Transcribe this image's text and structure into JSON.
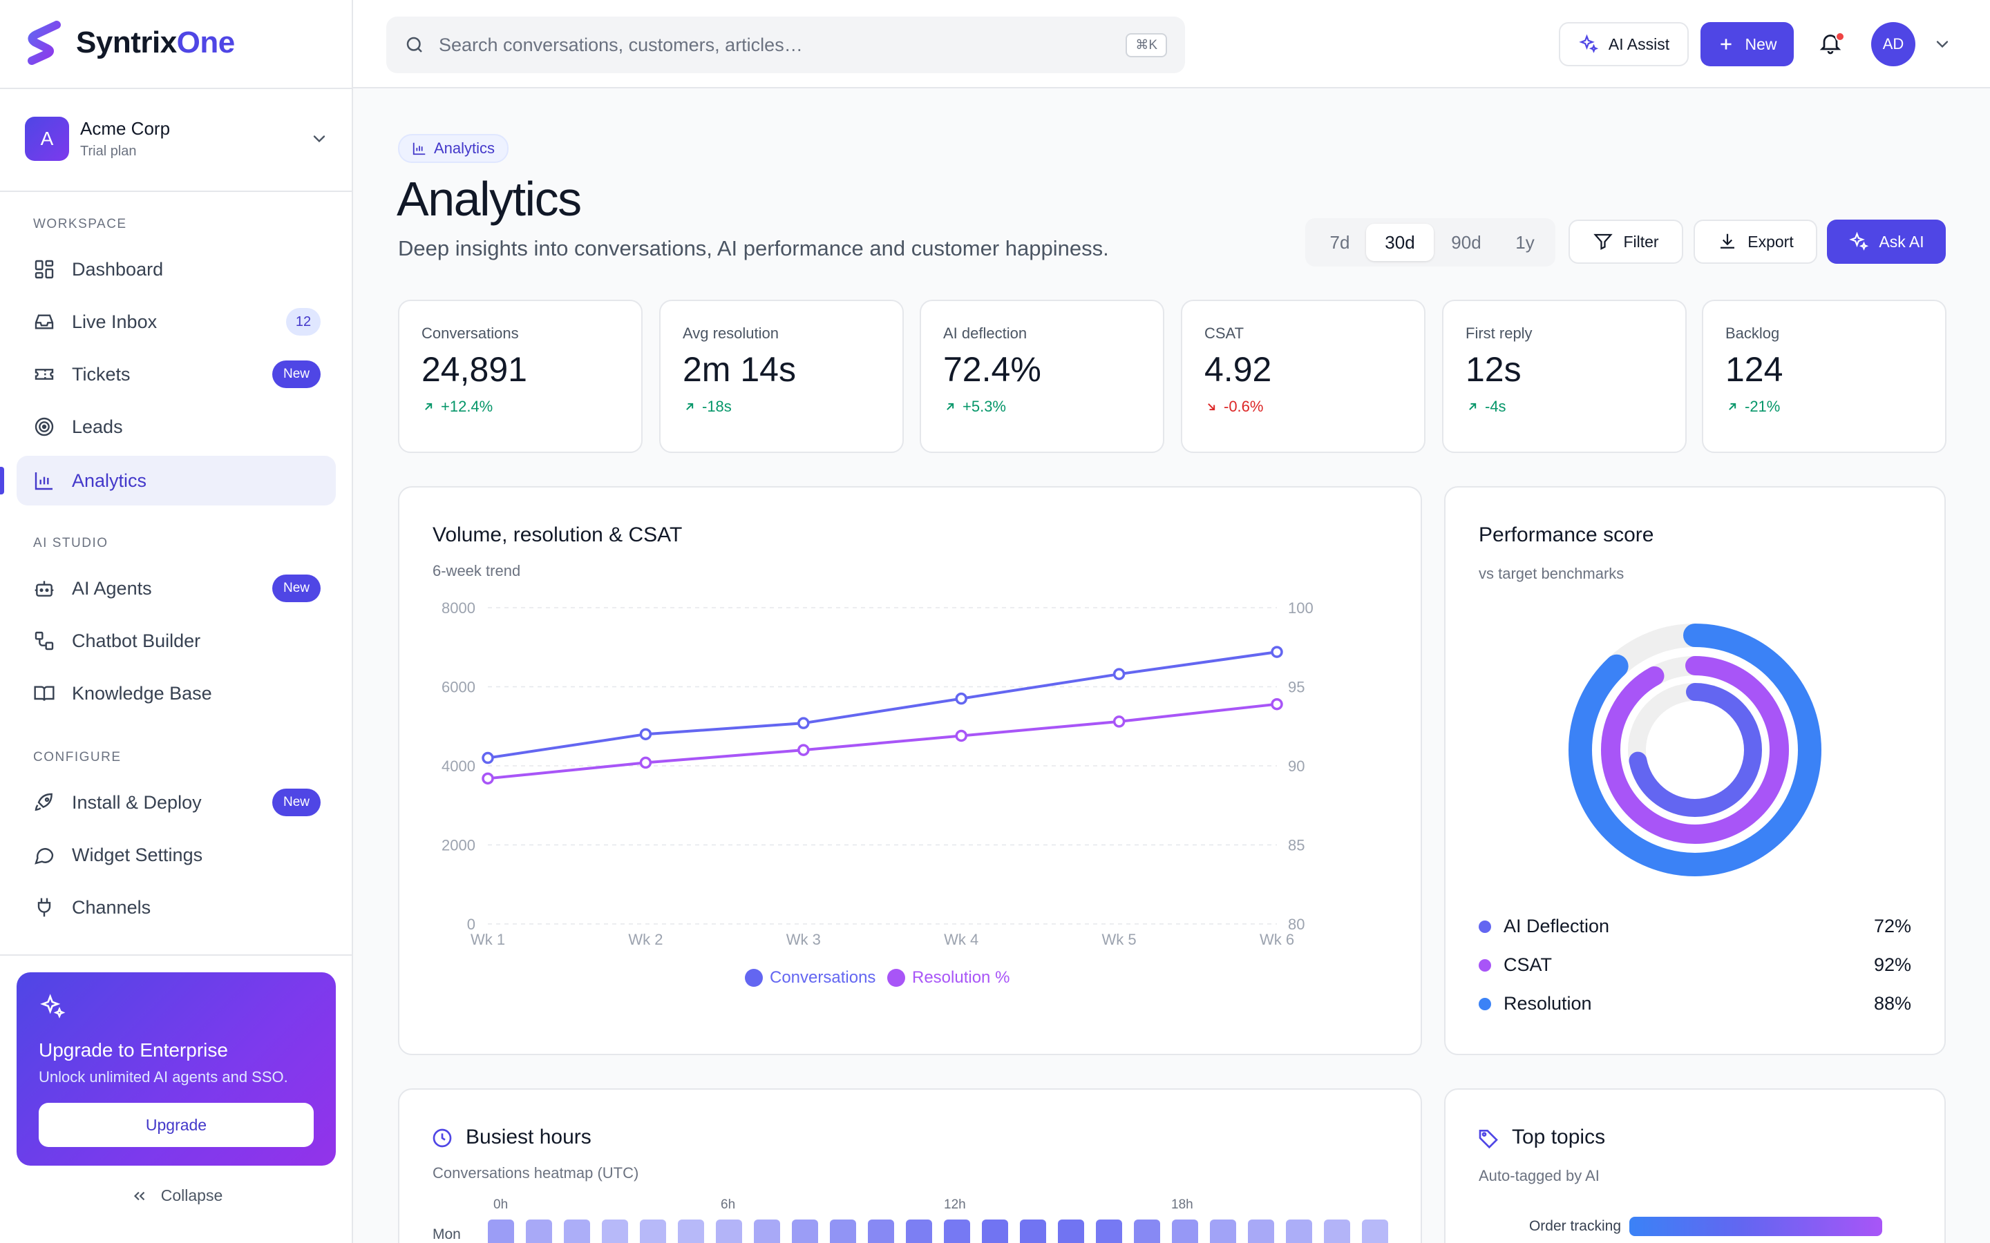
{
  "brand": {
    "name_a": "Syntrix",
    "name_b": "One"
  },
  "workspace": {
    "initial": "A",
    "name": "Acme Corp",
    "plan": "Trial plan"
  },
  "sidebar": {
    "sections": {
      "workspace": "WORKSPACE",
      "ai_studio": "AI STUDIO",
      "configure": "CONFIGURE"
    },
    "items": [
      {
        "label": "Dashboard"
      },
      {
        "label": "Live Inbox",
        "badge": "12"
      },
      {
        "label": "Tickets",
        "badge": "New"
      },
      {
        "label": "Leads"
      },
      {
        "label": "Analytics"
      },
      {
        "label": "AI Agents",
        "badge": "New"
      },
      {
        "label": "Chatbot Builder"
      },
      {
        "label": "Knowledge Base"
      },
      {
        "label": "Install & Deploy",
        "badge": "New"
      },
      {
        "label": "Widget Settings"
      },
      {
        "label": "Channels"
      }
    ],
    "upgrade": {
      "title": "Upgrade to Enterprise",
      "subtitle": "Unlock unlimited AI agents and SSO.",
      "button": "Upgrade"
    },
    "collapse": "Collapse"
  },
  "topbar": {
    "search_placeholder": "Search conversations, customers, articles…",
    "search_shortcut": "⌘K",
    "ai_assist": "AI Assist",
    "new": "New",
    "user_initials": "AD"
  },
  "page": {
    "pill": "Analytics",
    "title": "Analytics",
    "subtitle": "Deep insights into conversations, AI performance and customer happiness.",
    "ranges": [
      "7d",
      "30d",
      "90d",
      "1y"
    ],
    "selected_range": "30d",
    "filter": "Filter",
    "export": "Export",
    "ask_ai": "Ask AI"
  },
  "kpis": [
    {
      "label": "Conversations",
      "value": "24,891",
      "delta": "+12.4%",
      "direction": "up"
    },
    {
      "label": "Avg resolution",
      "value": "2m 14s",
      "delta": "-18s",
      "direction": "up"
    },
    {
      "label": "AI deflection",
      "value": "72.4%",
      "delta": "+5.3%",
      "direction": "up"
    },
    {
      "label": "CSAT",
      "value": "4.92",
      "delta": "-0.6%",
      "direction": "down"
    },
    {
      "label": "First reply",
      "value": "12s",
      "delta": "-4s",
      "direction": "up"
    },
    {
      "label": "Backlog",
      "value": "124",
      "delta": "-21%",
      "direction": "up"
    }
  ],
  "volume_card": {
    "title": "Volume, resolution & CSAT",
    "subtitle": "6-week trend"
  },
  "chart_data": [
    {
      "type": "line",
      "categories": [
        "Wk 1",
        "Wk 2",
        "Wk 3",
        "Wk 4",
        "Wk 5",
        "Wk 6"
      ],
      "series": [
        {
          "name": "Conversations",
          "axis": "left",
          "color": "#6366f1",
          "values": [
            4200,
            4800,
            5080,
            5700,
            6320,
            6880
          ]
        },
        {
          "name": "Resolution %",
          "axis": "right",
          "color": "#a855f7",
          "values": [
            89.2,
            90.2,
            91.0,
            91.9,
            92.8,
            93.9
          ]
        }
      ],
      "ylim_left": [
        0,
        8000
      ],
      "yticks_left": [
        "0",
        "2000",
        "4000",
        "6000",
        "8000"
      ],
      "ylim_right": [
        80,
        100
      ],
      "yticks_right": [
        "80",
        "85",
        "90",
        "95",
        "100"
      ],
      "grid": true,
      "legend_position": "bottom"
    },
    {
      "type": "pie",
      "title": "Performance score",
      "series": [
        {
          "name": "AI Deflection",
          "value": 72,
          "color": "#6366f1"
        },
        {
          "name": "CSAT",
          "value": 92,
          "color": "#a855f7"
        },
        {
          "name": "Resolution",
          "value": 88,
          "color": "#3b82f6"
        }
      ]
    }
  ],
  "performance": {
    "title": "Performance score",
    "subtitle": "vs target benchmarks",
    "rows": [
      {
        "label": "AI Deflection",
        "value": "72%"
      },
      {
        "label": "CSAT",
        "value": "92%"
      },
      {
        "label": "Resolution",
        "value": "88%"
      }
    ]
  },
  "busiest": {
    "title": "Busiest hours",
    "subtitle": "Conversations heatmap (UTC)",
    "hours": [
      "0h",
      "6h",
      "12h",
      "18h"
    ],
    "row_label": "Mon",
    "mon_intensity": [
      0.55,
      0.45,
      0.4,
      0.3,
      0.3,
      0.3,
      0.35,
      0.45,
      0.55,
      0.65,
      0.75,
      0.85,
      0.9,
      0.95,
      0.95,
      0.95,
      0.9,
      0.75,
      0.6,
      0.5,
      0.45,
      0.4,
      0.35,
      0.3
    ]
  },
  "topics": {
    "title": "Top topics",
    "subtitle": "Auto-tagged by AI",
    "items": [
      {
        "label": "Order tracking",
        "share": 0.88
      }
    ]
  },
  "colors": {
    "accent": "#4f46e5",
    "purple": "#a855f7",
    "blue": "#3b82f6",
    "up": "#059669",
    "down": "#dc2626"
  }
}
